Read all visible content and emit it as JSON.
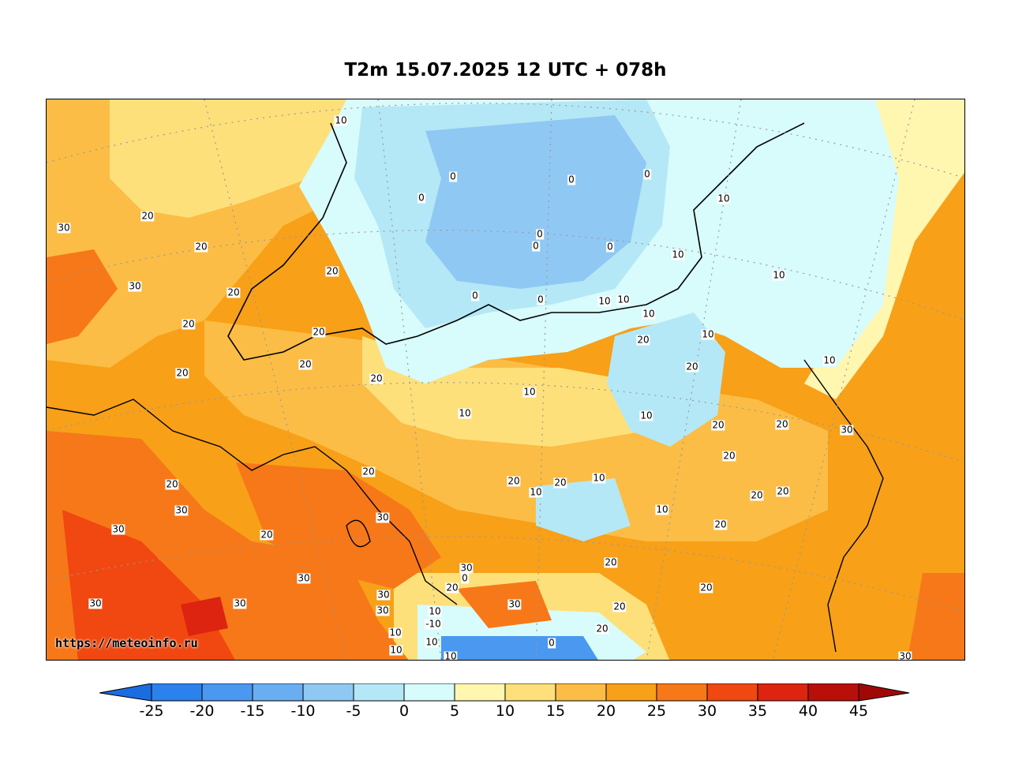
{
  "title": "T2m 15.07.2025 12 UTC + 078h",
  "watermark": "https://meteoinfo.ru",
  "colorbar": {
    "ticks": [
      "-25",
      "-20",
      "-15",
      "-10",
      "-5",
      "0",
      "5",
      "10",
      "15",
      "20",
      "25",
      "30",
      "35",
      "40",
      "45"
    ],
    "colors": [
      "#1a6de0",
      "#2c82ec",
      "#4a98f0",
      "#6aaef2",
      "#90c8f4",
      "#b4e8f6",
      "#d8fbfb",
      "#fff6b0",
      "#fde07a",
      "#fbbd45",
      "#f7a018",
      "#f77818",
      "#f04810",
      "#dc2410",
      "#b81008",
      "#a00808"
    ]
  },
  "contour_labels": [
    "10",
    "0",
    "0",
    "0",
    "0",
    "0",
    "0",
    "0",
    "0",
    "0",
    "10",
    "10",
    "10",
    "10",
    "20",
    "30",
    "20",
    "30",
    "20",
    "20",
    "20",
    "20",
    "20",
    "20",
    "20",
    "10",
    "10",
    "10",
    "10",
    "10",
    "10",
    "10",
    "20",
    "20",
    "20",
    "20",
    "20",
    "20",
    "20",
    "20",
    "20",
    "20",
    "20",
    "20",
    "20",
    "20",
    "30",
    "30",
    "30",
    "30",
    "30",
    "30",
    "30",
    "30",
    "30",
    "30",
    "30",
    "30",
    "20",
    "10",
    "10",
    "10",
    "10",
    "-10",
    "0",
    "10",
    "0",
    "20",
    "10",
    "20",
    "20",
    "10",
    "10"
  ]
}
